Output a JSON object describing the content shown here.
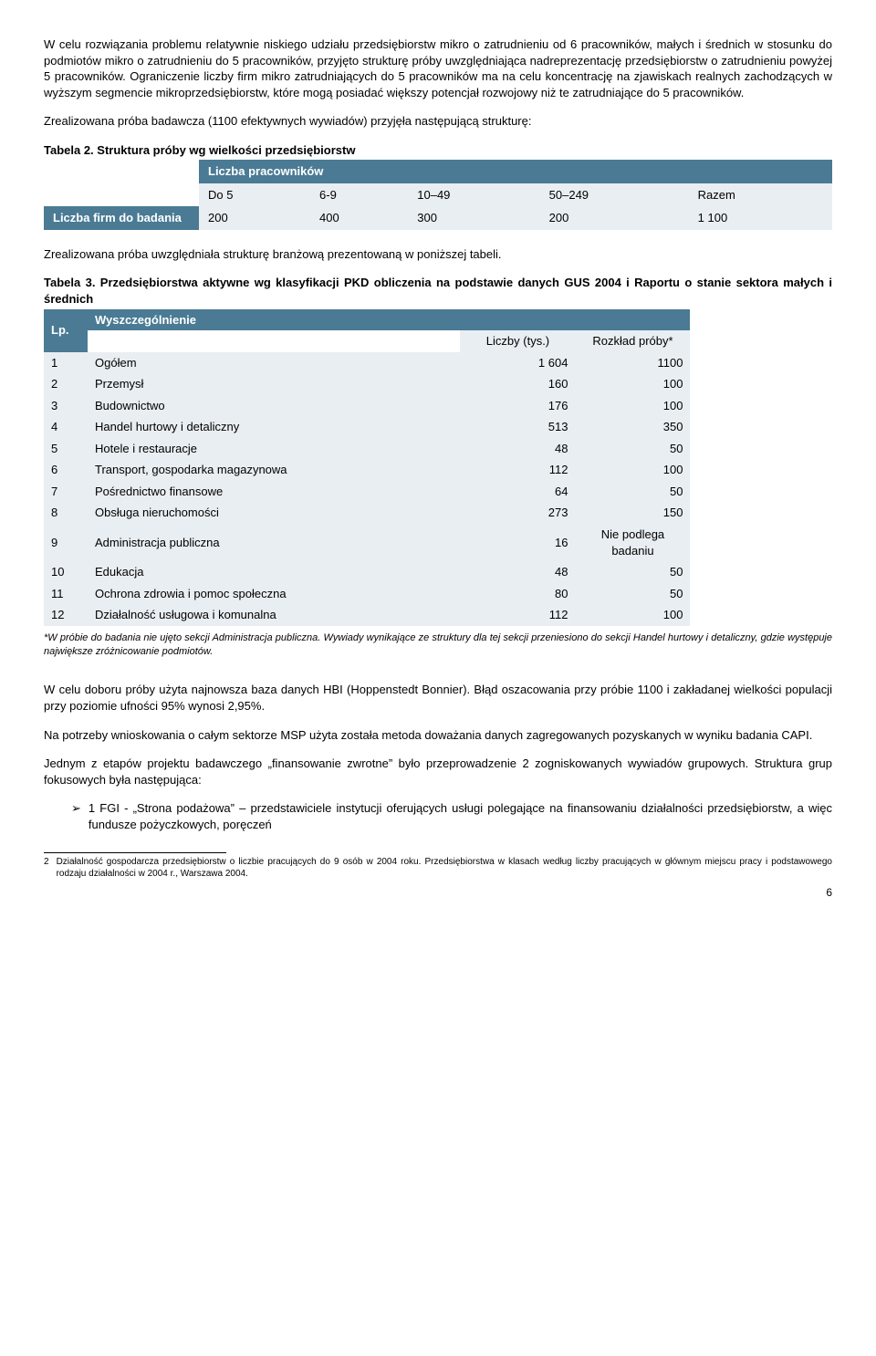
{
  "para1": "W celu rozwiązania problemu relatywnie niskiego udziału przedsiębiorstw mikro o zatrudnieniu od 6 pracowników, małych i średnich w stosunku do podmiotów mikro o zatrudnieniu do 5 pracowników, przyjęto strukturę próby uwzględniająca nadreprezentację przedsiębiorstw o zatrudnieniu powyżej 5 pracowników. Ograniczenie liczby firm mikro zatrudniających do 5 pracowników ma na celu koncentrację na zjawiskach realnych zachodzących w wyższym segmencie mikroprzedsiębiorstw, które mogą posiadać większy potencjał rozwojowy niż te zatrudniające do 5 pracowników.",
  "para2": "Zrealizowana próba badawcza (1100 efektywnych wywiadów) przyjęła następującą strukturę:",
  "t2_title": "Tabela 2. Struktura próby wg wielkości przedsiębiorstw",
  "t2": {
    "hdr": "Liczba pracowników",
    "cols": [
      "Do 5",
      "6-9",
      "10–49",
      "50–249",
      "Razem"
    ],
    "rowlabel": "Liczba firm do badania",
    "vals": [
      "200",
      "400",
      "300",
      "200",
      "1 100"
    ]
  },
  "para3": "Zrealizowana próba uwzględniała strukturę branżową prezentowaną w poniższej tabeli.",
  "t3_title": "Tabela 3. Przedsiębiorstwa aktywne wg klasyfikacji PKD obliczenia na podstawie danych GUS 2004 i Raportu o stanie sektora małych i średnich",
  "t3": {
    "lp": "Lp.",
    "wysz": "Wyszczególnienie",
    "sub1": "Liczby (tys.)",
    "sub2": "Rozkład próby*",
    "rows": [
      {
        "n": "1",
        "name": "Ogółem",
        "a": "1 604",
        "b": "1100"
      },
      {
        "n": "2",
        "name": "Przemysł",
        "a": "160",
        "b": "100"
      },
      {
        "n": "3",
        "name": "Budownictwo",
        "a": "176",
        "b": "100"
      },
      {
        "n": "4",
        "name": "Handel hurtowy i detaliczny",
        "a": "513",
        "b": "350"
      },
      {
        "n": "5",
        "name": "Hotele i restauracje",
        "a": "48",
        "b": "50"
      },
      {
        "n": "6",
        "name": "Transport, gospodarka magazynowa",
        "a": "112",
        "b": "100"
      },
      {
        "n": "7",
        "name": "Pośrednictwo finansowe",
        "a": "64",
        "b": "50"
      },
      {
        "n": "8",
        "name": "Obsługa nieruchomości",
        "a": "273",
        "b": "150"
      },
      {
        "n": "9",
        "name": "Administracja publiczna",
        "a": "16",
        "b": "Nie podlega badaniu"
      },
      {
        "n": "10",
        "name": "Edukacja",
        "a": "48",
        "b": "50"
      },
      {
        "n": "11",
        "name": "Ochrona zdrowia i pomoc społeczna",
        "a": "80",
        "b": "50"
      },
      {
        "n": "12",
        "name": "Działalność usługowa i komunalna",
        "a": "112",
        "b": "100"
      }
    ]
  },
  "footnote": "*W próbie do badania nie ujęto sekcji Administracja publiczna. Wywiady wynikające ze struktury dla tej sekcji przeniesiono do sekcji Handel hurtowy i detaliczny, gdzie występuje największe zróżnicowanie podmiotów.",
  "para4": "W celu doboru próby użyta najnowsza baza danych HBI (Hoppenstedt Bonnier). Błąd oszacowania przy próbie 1100 i zakładanej wielkości populacji przy poziomie ufności 95% wynosi 2,95%.",
  "para5": "Na potrzeby wnioskowania o całym sektorze MSP użyta została metoda doważania danych zagregowanych pozyskanych w wyniku badania CAPI.",
  "para6": "Jednym z etapów projektu badawczego „finansowanie zwrotne” było przeprowadzenie 2 zogniskowanych wywiadów grupowych. Struktura grup fokusowych była następująca:",
  "bullet1": "1 FGI - „Strona podażowa” – przedstawiciele instytucji oferujących usługi polegające na finansowaniu działalności przedsiębiorstw, a więc fundusze pożyczkowych, poręczeń",
  "foot_n": "2",
  "foot_txt": "Działalność gospodarcza przedsiębiorstw o liczbie pracujących do 9 osób w 2004 roku. Przedsiębiorstwa w klasach według liczby pracujących w głównym miejscu pracy i podstawowego rodzaju działalności w 2004 r., Warszawa 2004.",
  "page": "6"
}
